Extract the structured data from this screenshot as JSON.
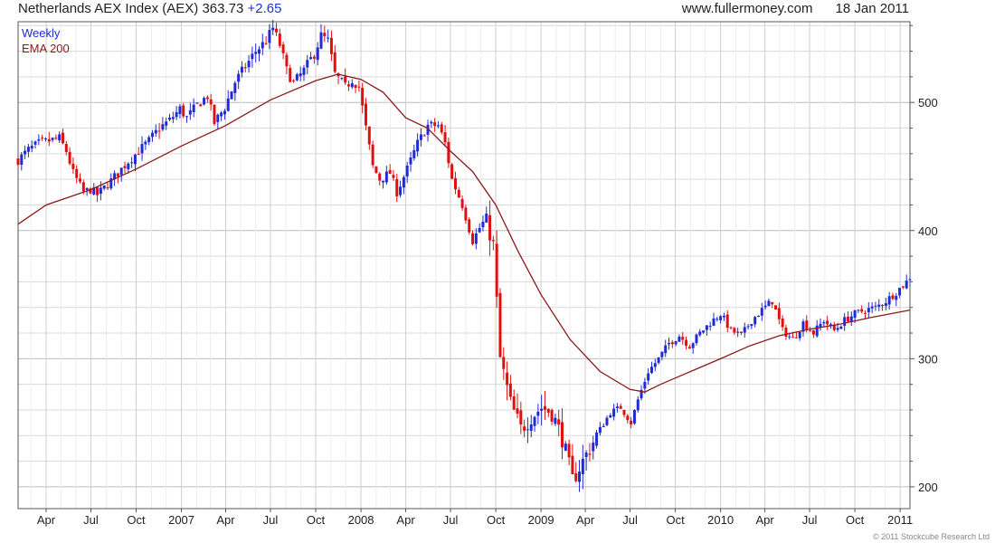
{
  "header": {
    "symbol_text": "Netherlands AEX Index (AEX)",
    "price": "363.73",
    "change": "+2.65",
    "site": "www.fullermoney.com",
    "date": "18 Jan 2011"
  },
  "copyright": "© 2011 Stockcube Research Ltd",
  "colors": {
    "up": "#1f2bd6",
    "down": "#e01010",
    "ema": "#8b1a1a",
    "grid": "#d9d9d9",
    "legend_weekly": "#1f2bd6",
    "legend_ema": "#8b1a1a"
  },
  "chart_data": {
    "type": "candlestick",
    "legend": [
      "Weekly",
      "EMA 200"
    ],
    "y_axis_side": "right",
    "ylim": [
      183,
      563
    ],
    "y_ticks": [
      200,
      300,
      400,
      500
    ],
    "x_range": [
      "2006-02-03",
      "2011-01-21"
    ],
    "x_ticks": [
      {
        "label": "Apr",
        "date": "2006-04-01"
      },
      {
        "label": "Jul",
        "date": "2006-07-01"
      },
      {
        "label": "Oct",
        "date": "2006-10-01"
      },
      {
        "label": "2007",
        "date": "2007-01-01"
      },
      {
        "label": "Apr",
        "date": "2007-04-01"
      },
      {
        "label": "Jul",
        "date": "2007-07-01"
      },
      {
        "label": "Oct",
        "date": "2007-10-01"
      },
      {
        "label": "2008",
        "date": "2008-01-01"
      },
      {
        "label": "Apr",
        "date": "2008-04-01"
      },
      {
        "label": "Jul",
        "date": "2008-07-01"
      },
      {
        "label": "Oct",
        "date": "2008-10-01"
      },
      {
        "label": "2009",
        "date": "2009-01-01"
      },
      {
        "label": "Apr",
        "date": "2009-04-01"
      },
      {
        "label": "Jul",
        "date": "2009-07-01"
      },
      {
        "label": "Oct",
        "date": "2009-10-01"
      },
      {
        "label": "2010",
        "date": "2010-01-01"
      },
      {
        "label": "Apr",
        "date": "2010-04-01"
      },
      {
        "label": "Jul",
        "date": "2010-07-01"
      },
      {
        "label": "Oct",
        "date": "2010-10-01"
      },
      {
        "label": "2011",
        "date": "2011-01-01"
      }
    ],
    "close_series": [
      [
        "2006-02-03",
        455
      ],
      [
        "2006-02-24",
        463
      ],
      [
        "2006-03-17",
        468
      ],
      [
        "2006-04-07",
        470
      ],
      [
        "2006-04-28",
        472
      ],
      [
        "2006-05-12",
        462
      ],
      [
        "2006-05-26",
        445
      ],
      [
        "2006-06-16",
        430
      ],
      [
        "2006-06-30",
        432
      ],
      [
        "2006-07-14",
        428
      ],
      [
        "2006-08-04",
        436
      ],
      [
        "2006-08-25",
        445
      ],
      [
        "2006-09-15",
        454
      ],
      [
        "2006-10-06",
        462
      ],
      [
        "2006-10-27",
        470
      ],
      [
        "2006-11-17",
        480
      ],
      [
        "2006-12-08",
        486
      ],
      [
        "2006-12-29",
        495
      ],
      [
        "2007-01-12",
        488
      ],
      [
        "2007-02-02",
        498
      ],
      [
        "2007-02-23",
        505
      ],
      [
        "2007-03-09",
        484
      ],
      [
        "2007-03-30",
        496
      ],
      [
        "2007-04-20",
        516
      ],
      [
        "2007-05-11",
        528
      ],
      [
        "2007-06-01",
        540
      ],
      [
        "2007-06-22",
        548
      ],
      [
        "2007-07-06",
        558
      ],
      [
        "2007-07-20",
        545
      ],
      [
        "2007-08-03",
        525
      ],
      [
        "2007-08-17",
        515
      ],
      [
        "2007-09-07",
        525
      ],
      [
        "2007-09-28",
        538
      ],
      [
        "2007-10-12",
        552
      ],
      [
        "2007-10-26",
        548
      ],
      [
        "2007-11-09",
        522
      ],
      [
        "2007-11-30",
        512
      ],
      [
        "2007-12-14",
        518
      ],
      [
        "2007-12-28",
        512
      ],
      [
        "2008-01-11",
        480
      ],
      [
        "2008-01-25",
        450
      ],
      [
        "2008-02-08",
        440
      ],
      [
        "2008-02-29",
        445
      ],
      [
        "2008-03-14",
        430
      ],
      [
        "2008-04-04",
        448
      ],
      [
        "2008-04-25",
        468
      ],
      [
        "2008-05-16",
        482
      ],
      [
        "2008-06-06",
        482
      ],
      [
        "2008-06-20",
        468
      ],
      [
        "2008-07-04",
        440
      ],
      [
        "2008-07-25",
        420
      ],
      [
        "2008-08-15",
        392
      ],
      [
        "2008-08-29",
        402
      ],
      [
        "2008-09-12",
        410
      ],
      [
        "2008-09-26",
        388
      ],
      [
        "2008-10-10",
        300
      ],
      [
        "2008-10-31",
        265
      ],
      [
        "2008-11-21",
        245
      ],
      [
        "2008-12-12",
        255
      ],
      [
        "2009-01-02",
        262
      ],
      [
        "2009-01-23",
        258
      ],
      [
        "2009-02-13",
        238
      ],
      [
        "2009-03-06",
        205
      ],
      [
        "2009-03-20",
        215
      ],
      [
        "2009-04-10",
        230
      ],
      [
        "2009-05-01",
        245
      ],
      [
        "2009-05-22",
        258
      ],
      [
        "2009-06-12",
        262
      ],
      [
        "2009-07-03",
        250
      ],
      [
        "2009-07-17",
        268
      ],
      [
        "2009-08-07",
        290
      ],
      [
        "2009-08-28",
        300
      ],
      [
        "2009-09-18",
        312
      ],
      [
        "2009-10-09",
        318
      ],
      [
        "2009-10-30",
        310
      ],
      [
        "2009-11-20",
        320
      ],
      [
        "2009-12-11",
        328
      ],
      [
        "2010-01-01",
        335
      ],
      [
        "2010-01-22",
        322
      ],
      [
        "2010-02-12",
        318
      ],
      [
        "2010-03-05",
        330
      ],
      [
        "2010-03-26",
        338
      ],
      [
        "2010-04-16",
        345
      ],
      [
        "2010-05-07",
        322
      ],
      [
        "2010-05-28",
        315
      ],
      [
        "2010-06-18",
        328
      ],
      [
        "2010-07-09",
        320
      ],
      [
        "2010-07-30",
        330
      ],
      [
        "2010-08-20",
        322
      ],
      [
        "2010-09-10",
        330
      ],
      [
        "2010-10-01",
        335
      ],
      [
        "2010-10-22",
        338
      ],
      [
        "2010-11-12",
        340
      ],
      [
        "2010-12-03",
        345
      ],
      [
        "2010-12-24",
        352
      ],
      [
        "2011-01-14",
        360
      ],
      [
        "2011-01-21",
        363.73
      ]
    ],
    "ema_200": [
      [
        "2006-02-03",
        405
      ],
      [
        "2006-04-01",
        420
      ],
      [
        "2006-07-01",
        432
      ],
      [
        "2006-10-01",
        448
      ],
      [
        "2007-01-01",
        466
      ],
      [
        "2007-04-01",
        482
      ],
      [
        "2007-07-01",
        502
      ],
      [
        "2007-10-01",
        517
      ],
      [
        "2007-11-15",
        522
      ],
      [
        "2008-01-01",
        518
      ],
      [
        "2008-02-15",
        508
      ],
      [
        "2008-04-01",
        488
      ],
      [
        "2008-05-15",
        480
      ],
      [
        "2008-07-01",
        462
      ],
      [
        "2008-08-15",
        446
      ],
      [
        "2008-10-01",
        420
      ],
      [
        "2008-11-15",
        384
      ],
      [
        "2009-01-01",
        350
      ],
      [
        "2009-03-01",
        315
      ],
      [
        "2009-05-01",
        290
      ],
      [
        "2009-07-01",
        276
      ],
      [
        "2009-07-31",
        274
      ],
      [
        "2009-09-01",
        280
      ],
      [
        "2009-11-01",
        290
      ],
      [
        "2010-01-01",
        300
      ],
      [
        "2010-03-01",
        310
      ],
      [
        "2010-05-01",
        318
      ],
      [
        "2010-07-01",
        323
      ],
      [
        "2010-09-01",
        327
      ],
      [
        "2010-11-01",
        332
      ],
      [
        "2011-01-21",
        338
      ]
    ]
  }
}
